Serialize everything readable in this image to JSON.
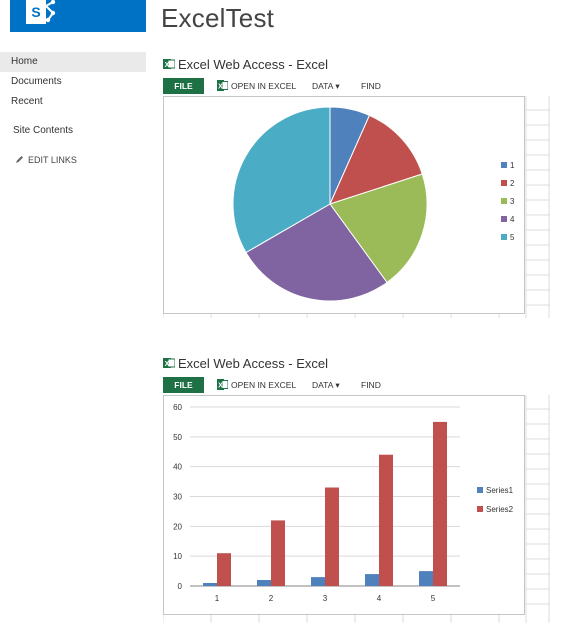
{
  "site": {
    "title": "ExcelTest",
    "logo_letter": "S"
  },
  "nav": {
    "items": [
      {
        "label": "Home",
        "selected": true
      },
      {
        "label": "Documents",
        "selected": false
      },
      {
        "label": "Recent",
        "selected": false
      }
    ],
    "site_contents": "Site Contents",
    "edit_links": "EDIT LINKS"
  },
  "webparts": [
    {
      "title": "Excel Web Access - Excel",
      "toolbar": {
        "file": "FILE",
        "open": "OPEN IN EXCEL",
        "data": "DATA",
        "data_arrow": "▾",
        "find": "FIND"
      }
    },
    {
      "title": "Excel Web Access - Excel",
      "toolbar": {
        "file": "FILE",
        "open": "OPEN IN EXCEL",
        "data": "DATA",
        "data_arrow": "▾",
        "find": "FIND"
      }
    }
  ],
  "colors": {
    "sharepoint_blue": "#0072c6",
    "excel_green": "#1e7145",
    "series_blue": "#4f81bd",
    "series_red": "#c0504d",
    "series_green": "#9bbb59",
    "series_purple": "#8064a2",
    "series_teal": "#4bacc6"
  },
  "chart_data": [
    {
      "type": "pie",
      "labels": [
        "1",
        "2",
        "3",
        "4",
        "5"
      ],
      "values": [
        1,
        2,
        3,
        4,
        5
      ],
      "colors": [
        "#4f81bd",
        "#c0504d",
        "#9bbb59",
        "#8064a2",
        "#4bacc6"
      ],
      "legend": "right"
    },
    {
      "type": "bar",
      "categories": [
        "1",
        "2",
        "3",
        "4",
        "5"
      ],
      "series": [
        {
          "name": "Series1",
          "values": [
            1,
            2,
            3,
            4,
            5
          ],
          "color": "#4f81bd"
        },
        {
          "name": "Series2",
          "values": [
            11,
            22,
            33,
            44,
            55
          ],
          "color": "#c0504d"
        }
      ],
      "ylim": [
        0,
        60
      ],
      "yticks": [
        0,
        10,
        20,
        30,
        40,
        50,
        60
      ],
      "grid": true,
      "legend": "right"
    }
  ]
}
